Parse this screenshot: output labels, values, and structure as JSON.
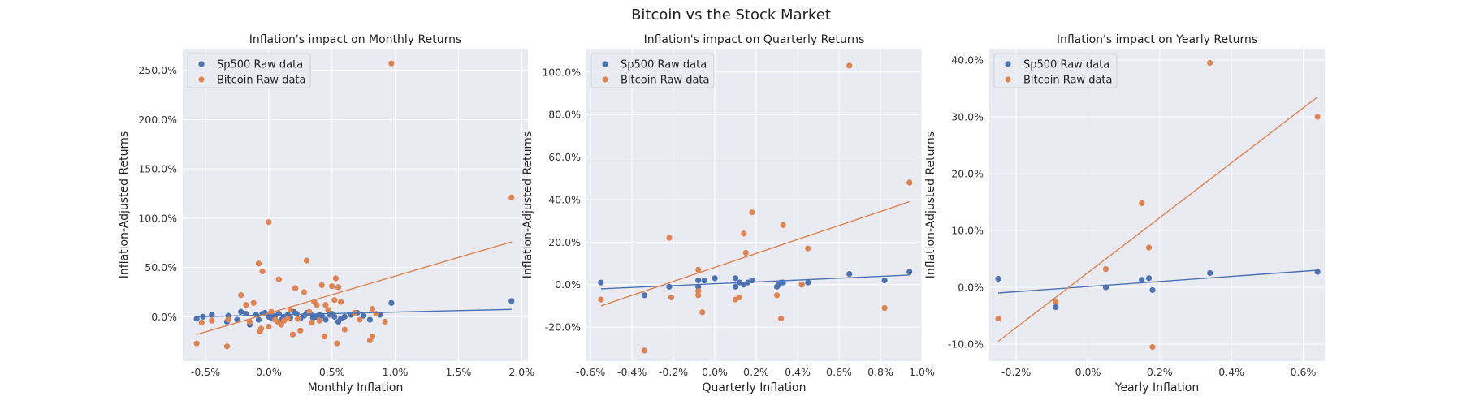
{
  "figure": {
    "suptitle": "Bitcoin vs the Stock Market"
  },
  "colors": {
    "sp500": "#4c72b0",
    "bitcoin": "#dd8452",
    "background": "#eaeaf2",
    "grid": "#ffffff"
  },
  "chart_data": [
    {
      "type": "scatter",
      "title": "Inflation's impact on Monthly Returns",
      "xlabel": "Monthly Inflation",
      "ylabel": "Inflation-Adjusted Returns",
      "xlim": [
        -0.68,
        2.05
      ],
      "ylim": [
        -45,
        272
      ],
      "xticks": [
        -0.5,
        0.0,
        0.5,
        1.0,
        1.5,
        2.0
      ],
      "xtick_labels": [
        "-0.5%",
        "0.0%",
        "0.5%",
        "1.0%",
        "1.5%",
        "2.0%"
      ],
      "yticks": [
        0,
        50,
        100,
        150,
        200,
        250
      ],
      "ytick_labels": [
        "0.0%",
        "50.0%",
        "100.0%",
        "150.0%",
        "200.0%",
        "250.0%"
      ],
      "grid": true,
      "legend_position": "top-left",
      "series": [
        {
          "name": "Sp500 Raw data",
          "color_key": "sp500",
          "trend": [
            [
              -0.57,
              0.0
            ],
            [
              1.92,
              7.5
            ]
          ],
          "points": [
            [
              -0.57,
              -2
            ],
            [
              -0.52,
              0
            ],
            [
              -0.45,
              2
            ],
            [
              -0.33,
              -5
            ],
            [
              -0.32,
              1
            ],
            [
              -0.25,
              -3
            ],
            [
              -0.22,
              5
            ],
            [
              -0.18,
              3
            ],
            [
              -0.15,
              -8
            ],
            [
              -0.1,
              2
            ],
            [
              -0.08,
              -3
            ],
            [
              -0.05,
              3
            ],
            [
              -0.03,
              4
            ],
            [
              0.0,
              0
            ],
            [
              0.02,
              -1
            ],
            [
              0.03,
              -2
            ],
            [
              0.05,
              1
            ],
            [
              0.08,
              3
            ],
            [
              0.1,
              -3
            ],
            [
              0.12,
              0
            ],
            [
              0.15,
              2
            ],
            [
              0.17,
              -1
            ],
            [
              0.2,
              5
            ],
            [
              0.22,
              3
            ],
            [
              0.25,
              -2
            ],
            [
              0.28,
              1
            ],
            [
              0.3,
              4
            ],
            [
              0.33,
              3
            ],
            [
              0.35,
              -1
            ],
            [
              0.37,
              0
            ],
            [
              0.4,
              2
            ],
            [
              0.42,
              1
            ],
            [
              0.45,
              -3
            ],
            [
              0.48,
              2
            ],
            [
              0.5,
              3
            ],
            [
              0.52,
              0
            ],
            [
              0.55,
              -5
            ],
            [
              0.57,
              -2
            ],
            [
              0.6,
              0
            ],
            [
              0.65,
              2
            ],
            [
              0.7,
              4
            ],
            [
              0.75,
              1
            ],
            [
              0.8,
              -3
            ],
            [
              0.88,
              2
            ],
            [
              0.97,
              14
            ],
            [
              1.92,
              16
            ]
          ]
        },
        {
          "name": "Bitcoin Raw data",
          "color_key": "bitcoin",
          "trend": [
            [
              -0.57,
              -18
            ],
            [
              1.92,
              76
            ]
          ],
          "points": [
            [
              -0.57,
              -27
            ],
            [
              -0.53,
              -6
            ],
            [
              -0.45,
              -4
            ],
            [
              -0.33,
              -30
            ],
            [
              -0.32,
              -3
            ],
            [
              -0.22,
              22
            ],
            [
              -0.18,
              12
            ],
            [
              -0.15,
              -5
            ],
            [
              -0.12,
              14
            ],
            [
              -0.08,
              54
            ],
            [
              -0.07,
              -15
            ],
            [
              -0.06,
              -12
            ],
            [
              -0.05,
              46
            ],
            [
              0.0,
              96
            ],
            [
              0.0,
              -10
            ],
            [
              0.02,
              5
            ],
            [
              0.05,
              -3
            ],
            [
              0.07,
              -5
            ],
            [
              0.08,
              38
            ],
            [
              0.1,
              -8
            ],
            [
              0.12,
              -4
            ],
            [
              0.15,
              -2
            ],
            [
              0.17,
              7
            ],
            [
              0.19,
              -18
            ],
            [
              0.21,
              29
            ],
            [
              0.23,
              -2
            ],
            [
              0.25,
              -14
            ],
            [
              0.28,
              25
            ],
            [
              0.3,
              57
            ],
            [
              0.32,
              5
            ],
            [
              0.34,
              -6
            ],
            [
              0.36,
              15
            ],
            [
              0.38,
              12
            ],
            [
              0.4,
              -4
            ],
            [
              0.42,
              32
            ],
            [
              0.44,
              -20
            ],
            [
              0.45,
              12
            ],
            [
              0.47,
              7
            ],
            [
              0.5,
              31
            ],
            [
              0.52,
              17
            ],
            [
              0.53,
              39
            ],
            [
              0.54,
              -27
            ],
            [
              0.55,
              30
            ],
            [
              0.57,
              15
            ],
            [
              0.6,
              -13
            ],
            [
              0.68,
              4
            ],
            [
              0.72,
              -3
            ],
            [
              0.8,
              -24
            ],
            [
              0.82,
              -20
            ],
            [
              0.82,
              8
            ],
            [
              0.85,
              3
            ],
            [
              0.92,
              -5
            ],
            [
              0.97,
              257
            ],
            [
              1.92,
              121
            ]
          ]
        }
      ]
    },
    {
      "type": "scatter",
      "title": "Inflation's impact on Quarterly Returns",
      "xlabel": "Quarterly Inflation",
      "ylabel": "Inflation-Adjusted Returns",
      "xlim": [
        -0.62,
        1.0
      ],
      "ylim": [
        -36,
        111
      ],
      "xticks": [
        -0.6,
        -0.4,
        -0.2,
        0.0,
        0.2,
        0.4,
        0.6,
        0.8,
        1.0
      ],
      "xtick_labels": [
        "-0.6%",
        "-0.4%",
        "-0.2%",
        "0.0%",
        "0.2%",
        "0.4%",
        "0.6%",
        "0.8%",
        "1.0%"
      ],
      "yticks": [
        -20,
        0,
        20,
        40,
        60,
        80,
        100
      ],
      "ytick_labels": [
        "-20.0%",
        "0.0%",
        "20.0%",
        "40.0%",
        "60.0%",
        "80.0%",
        "100.0%"
      ],
      "grid": true,
      "legend_position": "top-left",
      "series": [
        {
          "name": "Sp500 Raw data",
          "color_key": "sp500",
          "trend": [
            [
              -0.55,
              -2
            ],
            [
              0.94,
              4.5
            ]
          ],
          "points": [
            [
              -0.55,
              1
            ],
            [
              -0.34,
              -5
            ],
            [
              -0.22,
              -1
            ],
            [
              -0.08,
              2
            ],
            [
              -0.08,
              -1
            ],
            [
              -0.05,
              2
            ],
            [
              0.0,
              3
            ],
            [
              0.1,
              3
            ],
            [
              0.1,
              -1
            ],
            [
              0.12,
              1
            ],
            [
              0.14,
              0
            ],
            [
              0.16,
              1
            ],
            [
              0.18,
              2
            ],
            [
              0.3,
              -1
            ],
            [
              0.31,
              0
            ],
            [
              0.32,
              1
            ],
            [
              0.33,
              1
            ],
            [
              0.42,
              0
            ],
            [
              0.45,
              1
            ],
            [
              0.65,
              5
            ],
            [
              0.82,
              2
            ],
            [
              0.94,
              6
            ]
          ]
        },
        {
          "name": "Bitcoin Raw data",
          "color_key": "bitcoin",
          "trend": [
            [
              -0.55,
              -10
            ],
            [
              0.94,
              39
            ]
          ],
          "points": [
            [
              -0.55,
              -7
            ],
            [
              -0.34,
              -31
            ],
            [
              -0.22,
              22
            ],
            [
              -0.21,
              -6
            ],
            [
              -0.08,
              7
            ],
            [
              -0.08,
              -3
            ],
            [
              -0.08,
              -5
            ],
            [
              -0.06,
              -13
            ],
            [
              0.1,
              -7
            ],
            [
              0.12,
              -6
            ],
            [
              0.14,
              24
            ],
            [
              0.15,
              15
            ],
            [
              0.18,
              34
            ],
            [
              0.3,
              -5
            ],
            [
              0.32,
              -16
            ],
            [
              0.33,
              28
            ],
            [
              0.42,
              0
            ],
            [
              0.45,
              17
            ],
            [
              0.65,
              103
            ],
            [
              0.82,
              -11
            ],
            [
              0.94,
              48
            ]
          ]
        }
      ]
    },
    {
      "type": "scatter",
      "title": "Inflation's impact on Yearly Returns",
      "xlabel": "Yearly Inflation",
      "ylabel": "Inflation-Adjusted Returns",
      "xlim": [
        -0.275,
        0.66
      ],
      "ylim": [
        -13,
        42
      ],
      "xticks": [
        -0.2,
        0.0,
        0.2,
        0.4,
        0.6
      ],
      "xtick_labels": [
        "-0.2%",
        "0.0%",
        "0.2%",
        "0.4%",
        "0.6%"
      ],
      "yticks": [
        -10,
        0,
        10,
        20,
        30,
        40
      ],
      "ytick_labels": [
        "-10.0%",
        "0.0%",
        "10.0%",
        "20.0%",
        "30.0%",
        "40.0%"
      ],
      "grid": true,
      "legend_position": "top-left",
      "series": [
        {
          "name": "Sp500 Raw data",
          "color_key": "sp500",
          "trend": [
            [
              -0.25,
              -1
            ],
            [
              0.64,
              3
            ]
          ],
          "points": [
            [
              -0.25,
              1.5
            ],
            [
              -0.09,
              -3.5
            ],
            [
              0.05,
              0
            ],
            [
              0.15,
              1.3
            ],
            [
              0.17,
              1.6
            ],
            [
              0.18,
              -0.5
            ],
            [
              0.34,
              2.5
            ],
            [
              0.64,
              2.7
            ]
          ]
        },
        {
          "name": "Bitcoin Raw data",
          "color_key": "bitcoin",
          "trend": [
            [
              -0.25,
              -9.5
            ],
            [
              0.64,
              33.5
            ]
          ],
          "points": [
            [
              -0.25,
              -5.5
            ],
            [
              -0.09,
              -2.5
            ],
            [
              0.05,
              3.2
            ],
            [
              0.15,
              14.8
            ],
            [
              0.17,
              7
            ],
            [
              0.18,
              -10.5
            ],
            [
              0.34,
              39.5
            ],
            [
              0.64,
              30
            ]
          ]
        }
      ]
    }
  ]
}
